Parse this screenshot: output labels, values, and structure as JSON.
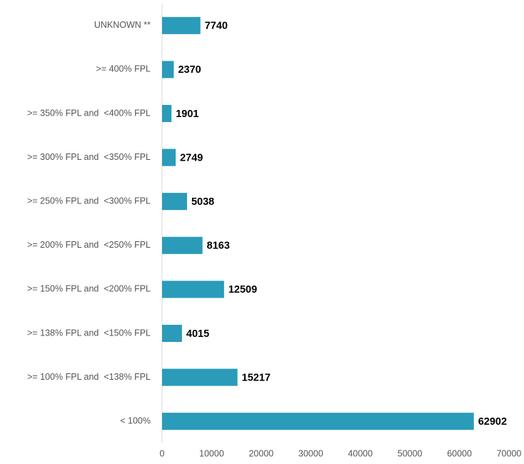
{
  "chart_data": {
    "type": "hbar",
    "categories": [
      "UNKNOWN **",
      ">= 400% FPL",
      ">= 350% FPL and  <400% FPL",
      ">= 300% FPL and  <350% FPL",
      ">= 250% FPL and  <300% FPL",
      ">= 200% FPL and  <250% FPL",
      ">= 150% FPL and  <200% FPL",
      ">= 138% FPL and  <150% FPL",
      ">= 100% FPL and  <138% FPL",
      "< 100%"
    ],
    "values": [
      7740,
      2370,
      1901,
      2749,
      5038,
      8163,
      12509,
      4015,
      15217,
      62902
    ],
    "color": "#2a9bb9",
    "xlim": [
      0,
      70000
    ],
    "xticks": [
      0,
      10000,
      20000,
      30000,
      40000,
      50000,
      60000,
      70000
    ],
    "grid": false
  }
}
